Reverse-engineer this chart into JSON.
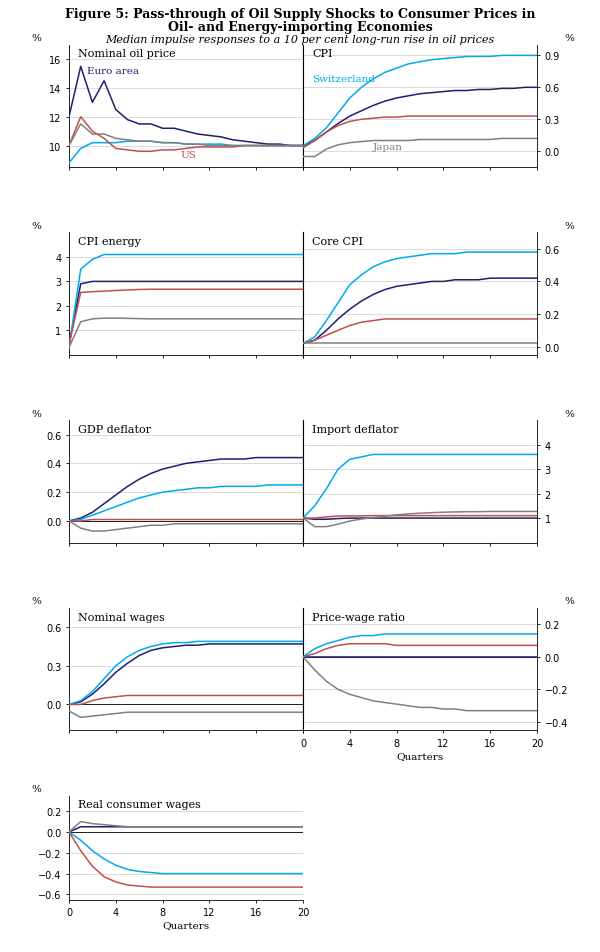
{
  "title_line1": "Figure 5: Pass-through of Oil Supply Shocks to Consumer Prices in",
  "title_line2": "Oil- and Energy-importing Economies",
  "subtitle": "Median impulse responses to a 10 per cent long-run rise in oil prices",
  "colors": {
    "euro_area": "#1f1f6e",
    "switzerland": "#00aaee",
    "us": "#c0504d",
    "japan": "#808080"
  },
  "quarters": [
    0,
    1,
    2,
    3,
    4,
    5,
    6,
    7,
    8,
    9,
    10,
    11,
    12,
    13,
    14,
    15,
    16,
    17,
    18,
    19,
    20
  ],
  "panels": {
    "nominal_oil": {
      "title": "Nominal oil price",
      "ylim": [
        8.5,
        17.0
      ],
      "yticks": [
        10,
        12,
        14,
        16
      ],
      "side": "left",
      "euro_area": [
        12.0,
        15.5,
        13.0,
        14.5,
        12.5,
        11.8,
        11.5,
        11.5,
        11.2,
        11.2,
        11.0,
        10.8,
        10.7,
        10.6,
        10.4,
        10.3,
        10.2,
        10.1,
        10.1,
        10.0,
        10.0
      ],
      "switzerland": [
        8.8,
        9.8,
        10.2,
        10.2,
        10.2,
        10.3,
        10.3,
        10.3,
        10.2,
        10.2,
        10.1,
        10.1,
        10.1,
        10.1,
        10.0,
        10.0,
        10.0,
        10.0,
        10.0,
        10.0,
        10.0
      ],
      "us": [
        10.0,
        12.0,
        11.0,
        10.5,
        9.8,
        9.7,
        9.6,
        9.6,
        9.7,
        9.7,
        9.8,
        9.9,
        9.9,
        9.9,
        9.9,
        10.0,
        10.0,
        10.0,
        10.0,
        10.0,
        10.0
      ],
      "japan": [
        10.0,
        11.5,
        10.8,
        10.8,
        10.5,
        10.4,
        10.3,
        10.3,
        10.2,
        10.2,
        10.1,
        10.1,
        10.0,
        10.0,
        10.0,
        10.0,
        10.0,
        10.0,
        10.0,
        10.0,
        10.0
      ],
      "label_euro": [
        "Euro area",
        1.5,
        15.2
      ],
      "label_us": [
        "US",
        9.5,
        9.4
      ],
      "label_ch": null,
      "label_jp": null
    },
    "cpi": {
      "title": "CPI",
      "ylim": [
        -0.15,
        1.0
      ],
      "yticks": [
        0.0,
        0.3,
        0.6,
        0.9
      ],
      "side": "right",
      "euro_area": [
        0.05,
        0.1,
        0.18,
        0.26,
        0.33,
        0.38,
        0.43,
        0.47,
        0.5,
        0.52,
        0.54,
        0.55,
        0.56,
        0.57,
        0.57,
        0.58,
        0.58,
        0.59,
        0.59,
        0.6,
        0.6
      ],
      "switzerland": [
        0.05,
        0.12,
        0.22,
        0.36,
        0.5,
        0.6,
        0.68,
        0.74,
        0.78,
        0.82,
        0.84,
        0.86,
        0.87,
        0.88,
        0.89,
        0.89,
        0.89,
        0.9,
        0.9,
        0.9,
        0.9
      ],
      "us": [
        0.03,
        0.1,
        0.18,
        0.24,
        0.28,
        0.3,
        0.31,
        0.32,
        0.32,
        0.33,
        0.33,
        0.33,
        0.33,
        0.33,
        0.33,
        0.33,
        0.33,
        0.33,
        0.33,
        0.33,
        0.33
      ],
      "japan": [
        -0.05,
        -0.05,
        0.02,
        0.06,
        0.08,
        0.09,
        0.1,
        0.1,
        0.1,
        0.1,
        0.11,
        0.11,
        0.11,
        0.11,
        0.11,
        0.11,
        0.11,
        0.12,
        0.12,
        0.12,
        0.12
      ],
      "label_ch": [
        "Switzerland",
        0.8,
        0.68
      ],
      "label_jp": [
        "Japan",
        6.0,
        0.04
      ],
      "label_euro": null,
      "label_us": null
    },
    "cpi_energy": {
      "title": "CPI energy",
      "ylim": [
        0.0,
        5.0
      ],
      "yticks": [
        1,
        2,
        3,
        4
      ],
      "side": "left",
      "euro_area": [
        0.4,
        2.9,
        3.0,
        3.0,
        3.0,
        3.0,
        3.0,
        3.0,
        3.0,
        3.0,
        3.0,
        3.0,
        3.0,
        3.0,
        3.0,
        3.0,
        3.0,
        3.0,
        3.0,
        3.0,
        3.0
      ],
      "switzerland": [
        0.3,
        3.5,
        3.9,
        4.1,
        4.1,
        4.1,
        4.1,
        4.1,
        4.1,
        4.1,
        4.1,
        4.1,
        4.1,
        4.1,
        4.1,
        4.1,
        4.1,
        4.1,
        4.1,
        4.1,
        4.1
      ],
      "us": [
        0.4,
        2.55,
        2.58,
        2.6,
        2.63,
        2.65,
        2.67,
        2.68,
        2.68,
        2.68,
        2.68,
        2.68,
        2.68,
        2.68,
        2.68,
        2.68,
        2.68,
        2.68,
        2.68,
        2.68,
        2.68
      ],
      "japan": [
        0.3,
        1.35,
        1.47,
        1.5,
        1.5,
        1.49,
        1.48,
        1.47,
        1.47,
        1.47,
        1.47,
        1.47,
        1.47,
        1.47,
        1.47,
        1.47,
        1.47,
        1.47,
        1.47,
        1.47,
        1.47
      ],
      "label_euro": null,
      "label_us": null,
      "label_ch": null,
      "label_jp": null
    },
    "core_cpi": {
      "title": "Core CPI",
      "ylim": [
        -0.05,
        0.7
      ],
      "yticks": [
        0.0,
        0.2,
        0.4,
        0.6
      ],
      "side": "right",
      "euro_area": [
        0.02,
        0.04,
        0.1,
        0.17,
        0.23,
        0.28,
        0.32,
        0.35,
        0.37,
        0.38,
        0.39,
        0.4,
        0.4,
        0.41,
        0.41,
        0.41,
        0.42,
        0.42,
        0.42,
        0.42,
        0.42
      ],
      "switzerland": [
        0.02,
        0.06,
        0.16,
        0.27,
        0.38,
        0.44,
        0.49,
        0.52,
        0.54,
        0.55,
        0.56,
        0.57,
        0.57,
        0.57,
        0.58,
        0.58,
        0.58,
        0.58,
        0.58,
        0.58,
        0.58
      ],
      "us": [
        0.02,
        0.04,
        0.07,
        0.1,
        0.13,
        0.15,
        0.16,
        0.17,
        0.17,
        0.17,
        0.17,
        0.17,
        0.17,
        0.17,
        0.17,
        0.17,
        0.17,
        0.17,
        0.17,
        0.17,
        0.17
      ],
      "japan": [
        0.02,
        0.02,
        0.02,
        0.02,
        0.02,
        0.02,
        0.02,
        0.02,
        0.02,
        0.02,
        0.02,
        0.02,
        0.02,
        0.02,
        0.02,
        0.02,
        0.02,
        0.02,
        0.02,
        0.02,
        0.02
      ],
      "label_euro": null,
      "label_us": null,
      "label_ch": null,
      "label_jp": null
    },
    "gdp_deflator": {
      "title": "GDP deflator",
      "ylim": [
        -0.15,
        0.7
      ],
      "yticks": [
        0.0,
        0.2,
        0.4,
        0.6
      ],
      "side": "left",
      "euro_area": [
        0.0,
        0.02,
        0.06,
        0.12,
        0.18,
        0.24,
        0.29,
        0.33,
        0.36,
        0.38,
        0.4,
        0.41,
        0.42,
        0.43,
        0.43,
        0.43,
        0.44,
        0.44,
        0.44,
        0.44,
        0.44
      ],
      "switzerland": [
        0.0,
        0.01,
        0.04,
        0.07,
        0.1,
        0.13,
        0.16,
        0.18,
        0.2,
        0.21,
        0.22,
        0.23,
        0.23,
        0.24,
        0.24,
        0.24,
        0.24,
        0.25,
        0.25,
        0.25,
        0.25
      ],
      "us": [
        0.0,
        0.0,
        0.01,
        0.01,
        0.01,
        0.01,
        0.01,
        0.01,
        0.01,
        0.01,
        0.01,
        0.01,
        0.01,
        0.01,
        0.01,
        0.01,
        0.01,
        0.01,
        0.01,
        0.01,
        0.01
      ],
      "japan": [
        0.0,
        -0.05,
        -0.07,
        -0.07,
        -0.06,
        -0.05,
        -0.04,
        -0.03,
        -0.03,
        -0.02,
        -0.02,
        -0.02,
        -0.02,
        -0.02,
        -0.02,
        -0.02,
        -0.02,
        -0.02,
        -0.02,
        -0.02,
        -0.02
      ],
      "label_euro": null,
      "label_us": null,
      "label_ch": null,
      "label_jp": null
    },
    "import_deflator": {
      "title": "Import deflator",
      "ylim": [
        0.0,
        5.0
      ],
      "yticks": [
        1,
        2,
        3,
        4
      ],
      "side": "right",
      "euro_area": [
        1.0,
        0.95,
        0.95,
        0.98,
        1.0,
        1.0,
        1.0,
        1.0,
        1.0,
        1.0,
        1.0,
        1.0,
        1.0,
        1.0,
        1.0,
        1.0,
        1.0,
        1.0,
        1.0,
        1.0,
        1.0
      ],
      "switzerland": [
        1.0,
        1.5,
        2.2,
        3.0,
        3.4,
        3.5,
        3.6,
        3.6,
        3.6,
        3.6,
        3.6,
        3.6,
        3.6,
        3.6,
        3.6,
        3.6,
        3.6,
        3.6,
        3.6,
        3.6,
        3.6
      ],
      "us": [
        1.0,
        1.0,
        1.05,
        1.08,
        1.09,
        1.09,
        1.1,
        1.1,
        1.1,
        1.1,
        1.1,
        1.1,
        1.1,
        1.1,
        1.1,
        1.1,
        1.1,
        1.1,
        1.1,
        1.1,
        1.1
      ],
      "japan": [
        1.0,
        0.65,
        0.65,
        0.75,
        0.88,
        0.96,
        1.02,
        1.08,
        1.13,
        1.17,
        1.2,
        1.22,
        1.24,
        1.25,
        1.26,
        1.26,
        1.27,
        1.27,
        1.27,
        1.27,
        1.27
      ],
      "label_euro": null,
      "label_us": null,
      "label_ch": null,
      "label_jp": null
    },
    "nominal_wages": {
      "title": "Nominal wages",
      "ylim": [
        -0.2,
        0.75
      ],
      "yticks": [
        0.0,
        0.3,
        0.6
      ],
      "side": "left",
      "euro_area": [
        0.0,
        0.02,
        0.08,
        0.16,
        0.25,
        0.32,
        0.38,
        0.42,
        0.44,
        0.45,
        0.46,
        0.46,
        0.47,
        0.47,
        0.47,
        0.47,
        0.47,
        0.47,
        0.47,
        0.47,
        0.47
      ],
      "switzerland": [
        0.0,
        0.03,
        0.1,
        0.2,
        0.3,
        0.37,
        0.42,
        0.45,
        0.47,
        0.48,
        0.48,
        0.49,
        0.49,
        0.49,
        0.49,
        0.49,
        0.49,
        0.49,
        0.49,
        0.49,
        0.49
      ],
      "us": [
        0.0,
        0.0,
        0.03,
        0.05,
        0.06,
        0.07,
        0.07,
        0.07,
        0.07,
        0.07,
        0.07,
        0.07,
        0.07,
        0.07,
        0.07,
        0.07,
        0.07,
        0.07,
        0.07,
        0.07,
        0.07
      ],
      "japan": [
        -0.05,
        -0.1,
        -0.09,
        -0.08,
        -0.07,
        -0.06,
        -0.06,
        -0.06,
        -0.06,
        -0.06,
        -0.06,
        -0.06,
        -0.06,
        -0.06,
        -0.06,
        -0.06,
        -0.06,
        -0.06,
        -0.06,
        -0.06,
        -0.06
      ],
      "label_euro": null,
      "label_us": null,
      "label_ch": null,
      "label_jp": null
    },
    "price_wage_ratio": {
      "title": "Price-wage ratio",
      "ylim": [
        -0.45,
        0.3
      ],
      "yticks": [
        -0.4,
        -0.2,
        0.0,
        0.2
      ],
      "side": "right",
      "euro_area": [
        0.0,
        0.0,
        0.0,
        0.0,
        0.0,
        0.0,
        0.0,
        0.0,
        0.0,
        0.0,
        0.0,
        0.0,
        0.0,
        0.0,
        0.0,
        0.0,
        0.0,
        0.0,
        0.0,
        0.0,
        0.0
      ],
      "switzerland": [
        0.0,
        0.05,
        0.08,
        0.1,
        0.12,
        0.13,
        0.13,
        0.14,
        0.14,
        0.14,
        0.14,
        0.14,
        0.14,
        0.14,
        0.14,
        0.14,
        0.14,
        0.14,
        0.14,
        0.14,
        0.14
      ],
      "us": [
        0.0,
        0.02,
        0.05,
        0.07,
        0.08,
        0.08,
        0.08,
        0.08,
        0.07,
        0.07,
        0.07,
        0.07,
        0.07,
        0.07,
        0.07,
        0.07,
        0.07,
        0.07,
        0.07,
        0.07,
        0.07
      ],
      "japan": [
        0.0,
        -0.08,
        -0.15,
        -0.2,
        -0.23,
        -0.25,
        -0.27,
        -0.28,
        -0.29,
        -0.3,
        -0.31,
        -0.31,
        -0.32,
        -0.32,
        -0.33,
        -0.33,
        -0.33,
        -0.33,
        -0.33,
        -0.33,
        -0.33
      ],
      "label_euro": null,
      "label_us": null,
      "label_ch": null,
      "label_jp": null
    },
    "real_consumer_wages": {
      "title": "Real consumer wages",
      "ylim": [
        -0.65,
        0.35
      ],
      "yticks": [
        -0.6,
        -0.4,
        -0.2,
        0.0,
        0.2
      ],
      "side": "left",
      "euro_area": [
        0.0,
        0.05,
        0.05,
        0.05,
        0.05,
        0.05,
        0.05,
        0.05,
        0.05,
        0.05,
        0.05,
        0.05,
        0.05,
        0.05,
        0.05,
        0.05,
        0.05,
        0.05,
        0.05,
        0.05,
        0.05
      ],
      "switzerland": [
        0.0,
        -0.08,
        -0.18,
        -0.26,
        -0.32,
        -0.36,
        -0.38,
        -0.39,
        -0.4,
        -0.4,
        -0.4,
        -0.4,
        -0.4,
        -0.4,
        -0.4,
        -0.4,
        -0.4,
        -0.4,
        -0.4,
        -0.4,
        -0.4
      ],
      "us": [
        0.0,
        -0.18,
        -0.33,
        -0.43,
        -0.48,
        -0.51,
        -0.52,
        -0.53,
        -0.53,
        -0.53,
        -0.53,
        -0.53,
        -0.53,
        -0.53,
        -0.53,
        -0.53,
        -0.53,
        -0.53,
        -0.53,
        -0.53,
        -0.53
      ],
      "japan": [
        0.0,
        0.1,
        0.08,
        0.07,
        0.06,
        0.05,
        0.05,
        0.05,
        0.05,
        0.05,
        0.05,
        0.05,
        0.05,
        0.05,
        0.05,
        0.05,
        0.05,
        0.05,
        0.05,
        0.05,
        0.05
      ],
      "label_euro": null,
      "label_us": null,
      "label_ch": null,
      "label_jp": null
    }
  },
  "panel_order": [
    "nominal_oil",
    "cpi",
    "cpi_energy",
    "core_cpi",
    "gdp_deflator",
    "import_deflator",
    "nominal_wages",
    "price_wage_ratio",
    "real_consumer_wages"
  ]
}
